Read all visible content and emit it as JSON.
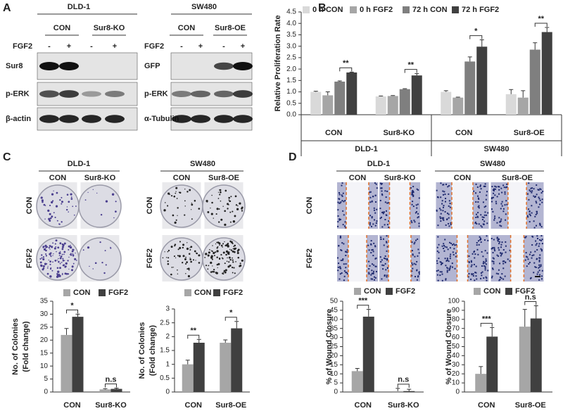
{
  "panel_labels": [
    "A",
    "B",
    "C",
    "D"
  ],
  "blots": [
    {
      "title": "DLD-1",
      "groups": [
        "CON",
        "Sur8-KO"
      ],
      "treatment": "FGF2",
      "signs": [
        "-",
        "+",
        "-",
        "+"
      ],
      "rows": [
        "Sur8",
        "p-ERK",
        "β-actin"
      ]
    },
    {
      "title": "SW480",
      "groups": [
        "CON",
        "Sur8-OE"
      ],
      "treatment": "FGF2",
      "signs": [
        "-",
        "+",
        "-",
        "+"
      ],
      "rows": [
        "GFP",
        "p-ERK",
        "α-Tubulin"
      ]
    }
  ],
  "images": [
    {
      "title": "DLD-1",
      "columns": [
        "CON",
        "Sur8-KO"
      ],
      "rows": [
        "CON",
        "FGF2"
      ]
    },
    {
      "title": "SW480",
      "columns": [
        "CON",
        "Sur8-OE"
      ],
      "rows": [
        "CON",
        "FGF2"
      ]
    },
    {
      "title": "DLD-1",
      "columns": [
        "CON",
        "Sur8-KO"
      ],
      "rows": [
        "CON",
        "FGF2"
      ]
    },
    {
      "title": "SW480",
      "columns": [
        "CON",
        "Sur8-OE"
      ],
      "rows": [
        "CON",
        "FGF2"
      ]
    }
  ],
  "chart_data": [
    {
      "type": "bar",
      "ylabel": "Relative Proliferation Rate",
      "categories": [
        "CON",
        "Sur8-KO",
        "CON",
        "Sur8-OE"
      ],
      "groups": [
        "DLD-1",
        "SW480"
      ],
      "series": [
        {
          "name": "0 h CON",
          "color": "#d9d9d9",
          "values": [
            1.0,
            0.8,
            1.0,
            0.9
          ],
          "errors": [
            0.03,
            0.02,
            0.05,
            0.2
          ]
        },
        {
          "name": "0 h FGF2",
          "color": "#a6a6a6",
          "values": [
            0.85,
            0.82,
            0.75,
            0.75
          ],
          "errors": [
            0.15,
            0.02,
            0.02,
            0.3
          ]
        },
        {
          "name": "72 h CON",
          "color": "#7f7f7f",
          "values": [
            1.45,
            1.12,
            2.33,
            2.85
          ],
          "errors": [
            0.03,
            0.02,
            0.2,
            0.3
          ]
        },
        {
          "name": "72 h FGF2",
          "color": "#404040",
          "values": [
            1.85,
            1.72,
            2.98,
            3.62
          ],
          "errors": [
            0.02,
            0.08,
            0.3,
            0.2
          ]
        }
      ],
      "annotations": [
        "**",
        "**",
        "*",
        "**"
      ],
      "ylim": [
        0,
        4.5
      ],
      "yticks": [
        {
          "value": 0,
          "label": "0.0"
        },
        0.5,
        {
          "value": 1,
          "label": "1.0"
        },
        1.5,
        {
          "value": 2,
          "label": "2.0"
        },
        2.5,
        {
          "value": 3,
          "label": "3.0"
        },
        3.5,
        {
          "value": 4,
          "label": "4.0"
        },
        4.5
      ]
    },
    {
      "type": "bar",
      "ylabel_lines": [
        "No. of Colonies",
        "(Fold change)"
      ],
      "categories": [
        "CON",
        "Sur8-KO"
      ],
      "series": [
        {
          "name": "CON",
          "color": "#a6a6a6",
          "values": [
            22,
            1
          ],
          "errors": [
            2.5,
            0.3
          ]
        },
        {
          "name": "FGF2",
          "color": "#404040",
          "values": [
            29,
            1.2
          ],
          "errors": [
            1,
            0.3
          ]
        }
      ],
      "annotations": [
        "*",
        "n.s"
      ],
      "ylim": [
        0,
        35
      ],
      "yticks": [
        0,
        5,
        10,
        15,
        20,
        25,
        30,
        35
      ]
    },
    {
      "type": "bar",
      "ylabel_lines": [
        "No. of Colonies",
        "(Fold change)"
      ],
      "categories": [
        "CON",
        "Sur8-OE"
      ],
      "series": [
        {
          "name": "CON",
          "color": "#a6a6a6",
          "values": [
            1.0,
            1.78
          ],
          "errors": [
            0.15,
            0.1
          ]
        },
        {
          "name": "FGF2",
          "color": "#404040",
          "values": [
            1.78,
            2.3
          ],
          "errors": [
            0.12,
            0.25
          ]
        }
      ],
      "annotations": [
        "**",
        "*"
      ],
      "ylim": [
        0,
        3
      ],
      "yticks": [
        0,
        0.5,
        1,
        1.5,
        2,
        2.5,
        3
      ]
    },
    {
      "type": "bar",
      "ylabel": "% of Wound Closure",
      "categories": [
        "CON",
        "Sur8-KO"
      ],
      "series": [
        {
          "name": "CON",
          "color": "#a6a6a6",
          "values": [
            11.5,
            0.5
          ],
          "errors": [
            1.5,
            1.5
          ]
        },
        {
          "name": "FGF2",
          "color": "#404040",
          "values": [
            41.5,
            0.5
          ],
          "errors": [
            4,
            1
          ]
        }
      ],
      "annotations": [
        "***",
        "n.s"
      ],
      "ylim": [
        0,
        50
      ],
      "yticks": [
        0,
        5,
        10,
        15,
        20,
        25,
        30,
        35,
        40,
        45,
        50
      ]
    },
    {
      "type": "bar",
      "ylabel": "% of Wound Closure",
      "categories": [
        "CON",
        "Sur8-OE"
      ],
      "series": [
        {
          "name": "CON",
          "color": "#a6a6a6",
          "values": [
            20,
            72
          ],
          "errors": [
            8,
            19
          ]
        },
        {
          "name": "FGF2",
          "color": "#404040",
          "values": [
            61,
            81
          ],
          "errors": [
            10,
            14
          ]
        }
      ],
      "annotations": [
        "***",
        "n.s"
      ],
      "ylim": [
        0,
        100
      ],
      "yticks": [
        0,
        10,
        20,
        30,
        40,
        50,
        60,
        70,
        80,
        90,
        100
      ]
    }
  ]
}
